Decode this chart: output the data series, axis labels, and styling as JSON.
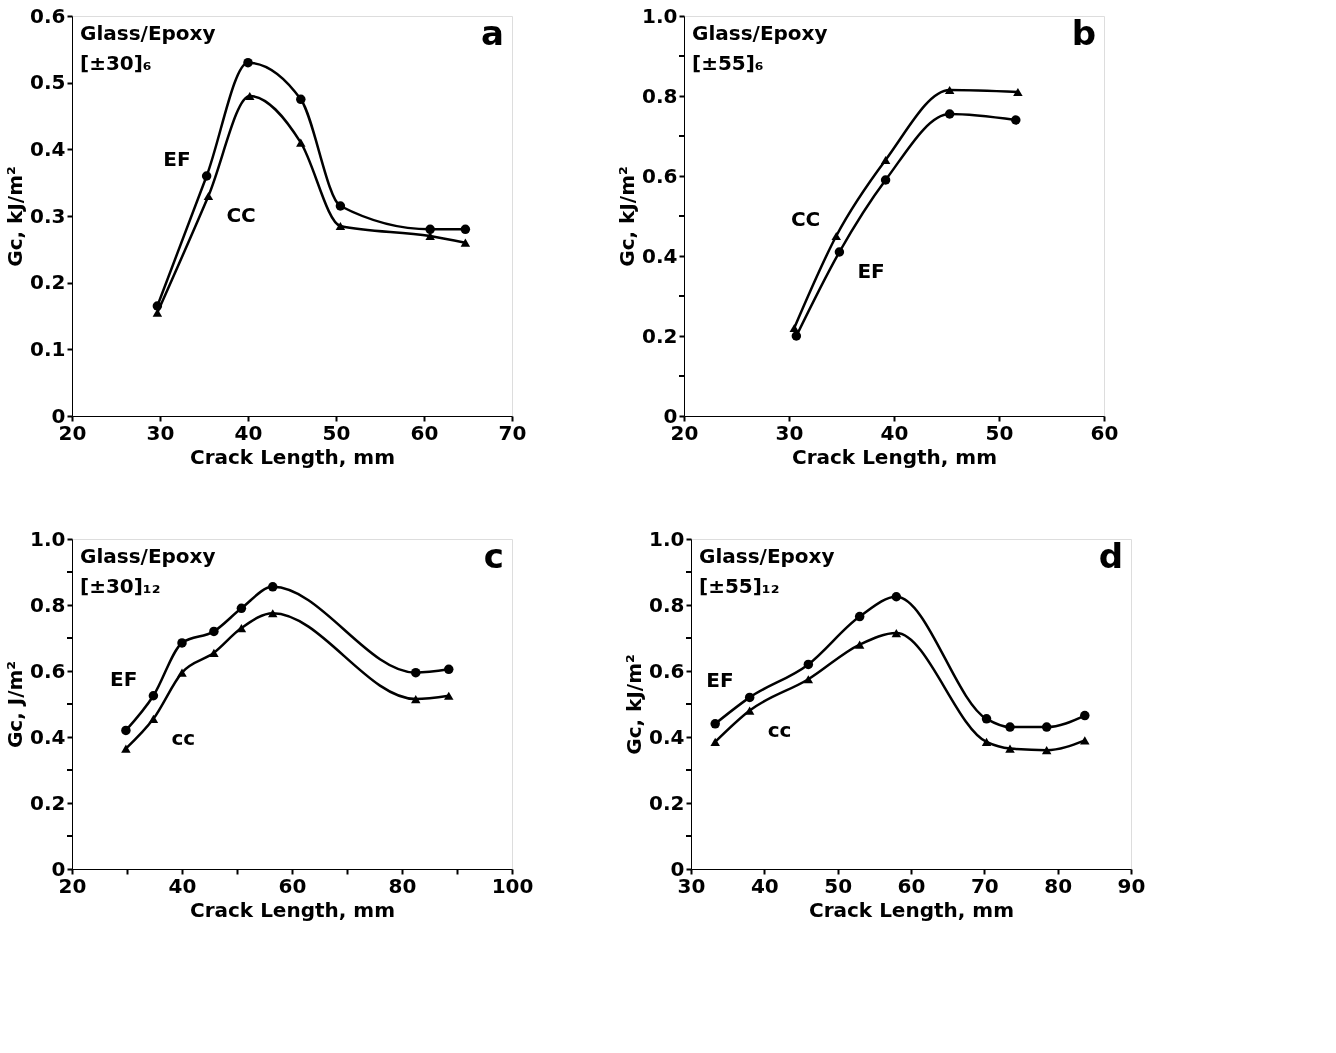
{
  "chart_data": [
    {
      "type": "line",
      "ylabel": "Gc, kJ/m²",
      "xlabel": "Crack Length, mm",
      "annotations": [
        "Glass/Epoxy",
        "[±30]₆",
        "a"
      ],
      "xlim": [
        20,
        70
      ],
      "xticks": [
        20,
        30,
        40,
        50,
        60,
        70
      ],
      "ylim": [
        0,
        0.6
      ],
      "yticks": [
        0,
        0.1,
        0.2,
        0.3,
        0.4,
        0.5,
        0.6
      ],
      "grid": false,
      "series": [
        {
          "name": "EF",
          "color": "#000000",
          "marker": "circle",
          "x": [
            29.7,
            35.3,
            40,
            46,
            50.5,
            60.7,
            64.7
          ],
          "values": [
            0.165,
            0.36,
            0.53,
            0.475,
            0.315,
            0.28,
            0.28
          ]
        },
        {
          "name": "CC",
          "color": "#000000",
          "marker": "triangle",
          "x": [
            29.7,
            35.5,
            40.2,
            46,
            50.5,
            60.7,
            64.7
          ],
          "values": [
            0.155,
            0.33,
            0.48,
            0.41,
            0.285,
            0.27,
            0.26
          ]
        }
      ]
    },
    {
      "type": "line",
      "ylabel": "Gc, kJ/m²",
      "xlabel": "Crack Length, mm",
      "annotations": [
        "Glass/Epoxy",
        "[±55]₆",
        "b"
      ],
      "xlim": [
        20,
        60
      ],
      "xticks": [
        20,
        30,
        40,
        50,
        60
      ],
      "ylim": [
        0,
        1.0
      ],
      "yticks": [
        0,
        {
          "value": 0.1,
          "label": null
        },
        0.2,
        {
          "value": 0.3,
          "label": null
        },
        0.4,
        {
          "value": 0.5,
          "label": null
        },
        0.6,
        {
          "value": 0.7,
          "label": null
        },
        0.8,
        {
          "value": 0.9,
          "label": null
        },
        {
          "value": 1.0,
          "label": "1.0"
        }
      ],
      "grid": false,
      "series": [
        {
          "name": "CC",
          "color": "#000000",
          "marker": "triangle",
          "x": [
            30.5,
            34.5,
            39.2,
            45.3,
            51.8
          ],
          "values": [
            0.22,
            0.45,
            0.64,
            0.815,
            0.81
          ]
        },
        {
          "name": "EF",
          "color": "#000000",
          "marker": "circle",
          "x": [
            30.7,
            34.8,
            39.2,
            45.3,
            51.6
          ],
          "values": [
            0.2,
            0.41,
            0.59,
            0.755,
            0.74
          ]
        }
      ]
    },
    {
      "type": "line",
      "ylabel": "Gc, J/m²",
      "xlabel": "Crack Length, mm",
      "annotations": [
        "Glass/Epoxy",
        "[±30]₁₂",
        "c"
      ],
      "xlim": [
        20,
        100
      ],
      "xticks": [
        20,
        {
          "value": 30,
          "label": null
        },
        40,
        {
          "value": 50,
          "label": null
        },
        60,
        {
          "value": 70,
          "label": null
        },
        80,
        {
          "value": 90,
          "label": null
        },
        100
      ],
      "ylim": [
        0,
        1.0
      ],
      "yticks": [
        0,
        {
          "value": 0.1,
          "label": null
        },
        0.2,
        {
          "value": 0.3,
          "label": null
        },
        0.4,
        {
          "value": 0.5,
          "label": null
        },
        0.6,
        {
          "value": 0.7,
          "label": null
        },
        0.8,
        {
          "value": 0.9,
          "label": null
        },
        {
          "value": 1.0,
          "label": "1.0"
        }
      ],
      "grid": false,
      "series": [
        {
          "name": "EF",
          "color": "#000000",
          "marker": "circle",
          "x": [
            29.8,
            34.8,
            40,
            45.8,
            50.8,
            56.5,
            82.5,
            88.5
          ],
          "values": [
            0.42,
            0.525,
            0.685,
            0.72,
            0.79,
            0.855,
            0.595,
            0.605
          ]
        },
        {
          "name": "cc",
          "color": "#000000",
          "marker": "triangle",
          "x": [
            29.8,
            34.8,
            40,
            45.8,
            50.8,
            56.5,
            82.5,
            88.5
          ],
          "values": [
            0.365,
            0.455,
            0.595,
            0.655,
            0.73,
            0.775,
            0.515,
            0.525
          ]
        }
      ]
    },
    {
      "type": "line",
      "ylabel": "Gc, kJ/m²",
      "xlabel": "Crack Length, mm",
      "annotations": [
        "Glass/Epoxy",
        "[±55]₁₂",
        "d"
      ],
      "xlim": [
        30,
        90
      ],
      "xticks": [
        30,
        40,
        50,
        60,
        70,
        80,
        90
      ],
      "ylim": [
        0,
        1.0
      ],
      "yticks": [
        0,
        {
          "value": 0.1,
          "label": null
        },
        0.2,
        {
          "value": 0.3,
          "label": null
        },
        0.4,
        {
          "value": 0.5,
          "label": null
        },
        0.6,
        {
          "value": 0.7,
          "label": null
        },
        0.8,
        {
          "value": 0.9,
          "label": null
        },
        {
          "value": 1.0,
          "label": "1.0"
        }
      ],
      "grid": false,
      "series": [
        {
          "name": "EF",
          "color": "#000000",
          "marker": "circle",
          "x": [
            33.3,
            38,
            46,
            53,
            58,
            70.3,
            73.5,
            78.5,
            83.7
          ],
          "values": [
            0.44,
            0.52,
            0.62,
            0.765,
            0.825,
            0.455,
            0.43,
            0.43,
            0.465
          ]
        },
        {
          "name": "cc",
          "color": "#000000",
          "marker": "triangle",
          "x": [
            33.3,
            38,
            46,
            53,
            58,
            70.3,
            73.5,
            78.5,
            83.7
          ],
          "values": [
            0.385,
            0.48,
            0.575,
            0.68,
            0.715,
            0.385,
            0.365,
            0.36,
            0.39
          ]
        }
      ]
    }
  ]
}
